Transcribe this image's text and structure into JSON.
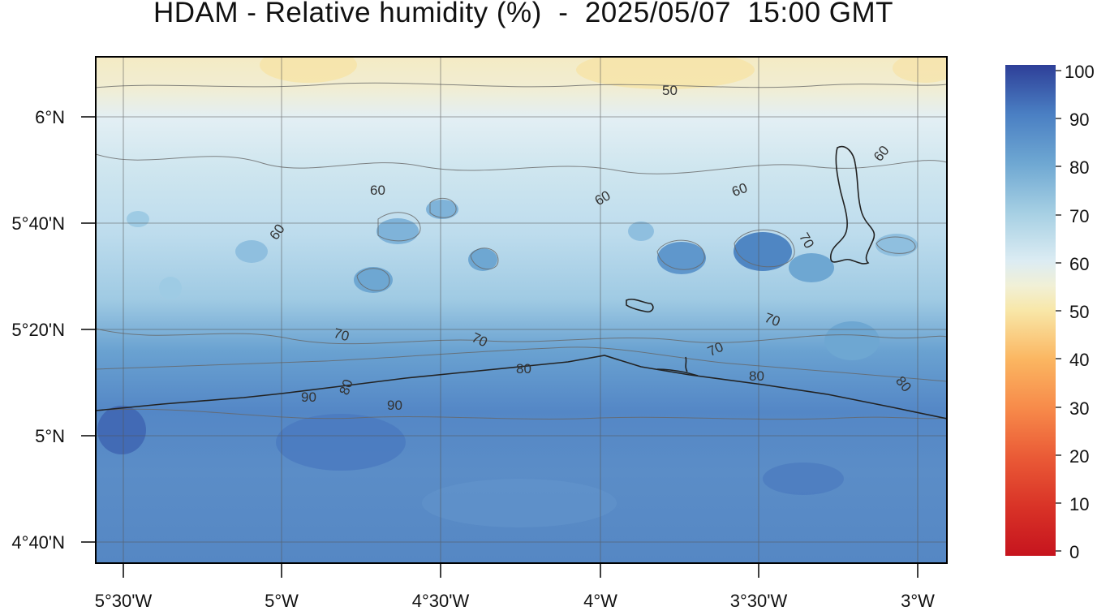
{
  "title": "HDAM - Relative humidity (%)  -  2025/05/07  15:00 GMT",
  "map": {
    "lat_labels": [
      "6°N",
      "5°40'N",
      "5°20'N",
      "5°N",
      "4°40'N"
    ],
    "lon_labels": [
      "5°30'W",
      "5°W",
      "4°30'W",
      "4°W",
      "3°30'W",
      "3°W"
    ],
    "contour_labels": [
      "50",
      "60",
      "60",
      "60",
      "60",
      "60",
      "70",
      "70",
      "70",
      "70",
      "70",
      "80",
      "80",
      "80",
      "80",
      "90",
      "90"
    ]
  },
  "colorbar": {
    "ticks": [
      "100",
      "90",
      "80",
      "70",
      "60",
      "50",
      "40",
      "30",
      "20",
      "10",
      "0"
    ],
    "stops": [
      {
        "value": 0,
        "color": "#c6141e"
      },
      {
        "value": 10,
        "color": "#d93327"
      },
      {
        "value": 20,
        "color": "#ea5a36"
      },
      {
        "value": 30,
        "color": "#f78a4a"
      },
      {
        "value": 40,
        "color": "#fbb661"
      },
      {
        "value": 50,
        "color": "#f8e7a8"
      },
      {
        "value": 55,
        "color": "#f1f0d6"
      },
      {
        "value": 60,
        "color": "#dcecf3"
      },
      {
        "value": 70,
        "color": "#a5cfe3"
      },
      {
        "value": 80,
        "color": "#6ea7d2"
      },
      {
        "value": 90,
        "color": "#4a7fc3"
      },
      {
        "value": 100,
        "color": "#2e3f98"
      }
    ]
  }
}
